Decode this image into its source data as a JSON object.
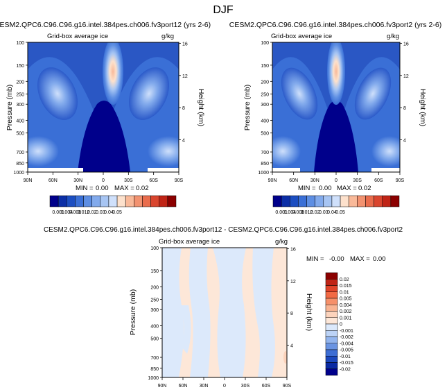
{
  "figure": {
    "title": "DJF"
  },
  "colors": {
    "deep_blue": "#0a2a9c",
    "navy": "#00008b",
    "blue_mid": "#3063cf",
    "blue_light": "#8fb3ef",
    "blue_pale": "#cfe0fb",
    "peach": "#fde1cc",
    "orange": "#f08a64",
    "red_dark": "#8b0000"
  },
  "chart_data": [
    {
      "type": "heatmap",
      "title": "CESM2.QPC6.C96.C96.g16.intel.384pes.ch006.fv3port12 (yrs 2-6)",
      "subtitle_left": "Grid-box average ice",
      "subtitle_right": "g/kg",
      "ylabel": "Pressure (mb)",
      "y2label": "Height (km)",
      "x_ticks": [
        "90N",
        "60N",
        "30N",
        "0",
        "30S",
        "60S",
        "90S"
      ],
      "y_ticks": [
        "100",
        "150",
        "200",
        "250",
        "300",
        "400",
        "500",
        "700",
        "850",
        "1000"
      ],
      "y2_ticks": [
        "16",
        "12",
        "8",
        "4"
      ],
      "stats": {
        "min_label": "MIN =",
        "min_value": "0.00",
        "max_label": "MAX =",
        "max_value": "0.02"
      },
      "colorbar": {
        "orientation": "horizontal",
        "labels": [
          "0.001",
          "0.004",
          "0.008",
          "0.012",
          "0.02",
          "0.03",
          "0.04",
          "0.05"
        ],
        "colors": [
          "#00008b",
          "#0b2ea6",
          "#1c4ec1",
          "#3a6fd6",
          "#5d8ee3",
          "#82aaec",
          "#a7c5f3",
          "#cfe0fb",
          "#fde1cc",
          "#f9b999",
          "#f29270",
          "#e96c4c",
          "#d9452e",
          "#c02416",
          "#8b0000"
        ]
      }
    },
    {
      "type": "heatmap",
      "title": "CESM2.QPC6.C96.C96.g16.intel.384pes.ch006.fv3port2 (yrs 2-6)",
      "subtitle_left": "Grid-box average ice",
      "subtitle_right": "g/kg",
      "ylabel": "Pressure (mb)",
      "y2label": "Height (km)",
      "x_ticks": [
        "90N",
        "60N",
        "30N",
        "0",
        "30S",
        "60S",
        "90S"
      ],
      "y_ticks": [
        "100",
        "150",
        "200",
        "250",
        "300",
        "400",
        "500",
        "700",
        "850",
        "1000"
      ],
      "y2_ticks": [
        "16",
        "12",
        "8",
        "4"
      ],
      "stats": {
        "min_label": "MIN =",
        "min_value": "0.00",
        "max_label": "MAX =",
        "max_value": "0.02"
      },
      "colorbar": {
        "orientation": "horizontal",
        "labels": [
          "0.001",
          "0.004",
          "0.008",
          "0.012",
          "0.02",
          "0.03",
          "0.04",
          "0.05"
        ],
        "colors": [
          "#00008b",
          "#0b2ea6",
          "#1c4ec1",
          "#3a6fd6",
          "#5d8ee3",
          "#82aaec",
          "#a7c5f3",
          "#cfe0fb",
          "#fde1cc",
          "#f9b999",
          "#f29270",
          "#e96c4c",
          "#d9452e",
          "#c02416",
          "#8b0000"
        ]
      }
    },
    {
      "type": "heatmap",
      "title": "CESM2.QPC6.C96.C96.g16.intel.384pes.ch006.fv3port12 - CESM2.QPC6.C96.C96.g16.intel.384pes.ch006.fv3port2",
      "subtitle_left": "Grid-box average ice",
      "subtitle_right": "g/kg",
      "ylabel": "Pressure (mb)",
      "y2label": "Height (km)",
      "x_ticks": [
        "90N",
        "60N",
        "30N",
        "0",
        "30S",
        "60S",
        "90S"
      ],
      "y_ticks": [
        "100",
        "150",
        "200",
        "250",
        "300",
        "400",
        "500",
        "700",
        "850",
        "1000"
      ],
      "y2_ticks": [
        "16",
        "12",
        "8",
        "4"
      ],
      "stats": {
        "min_label": "MIN =",
        "min_value": "-0.00",
        "max_label": "MAX =",
        "max_value": "0.00"
      },
      "colorbar": {
        "orientation": "vertical",
        "labels": [
          "0.02",
          "0.015",
          "0.01",
          "0.005",
          "0.004",
          "0.002",
          "0.001",
          "0",
          "-0.001",
          "-0.002",
          "-0.004",
          "-0.005",
          "-0.01",
          "-0.015",
          "-0.02"
        ],
        "colors": [
          "#8b0000",
          "#c02416",
          "#e0442a",
          "#f26a45",
          "#f6906a",
          "#f9b493",
          "#fcd3bc",
          "#fde7d8",
          "#dce9fb",
          "#bcd3f6",
          "#93b5ee",
          "#6a94e2",
          "#3e6ed4",
          "#1c48bd",
          "#0a2aa3",
          "#00008b"
        ]
      }
    }
  ]
}
